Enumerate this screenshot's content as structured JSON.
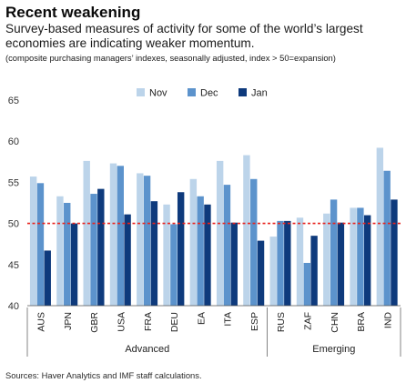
{
  "header": {
    "title": "Recent weakening",
    "subtitle": "Survey-based measures of activity for some of the world’s largest economies are indicating weaker momentum.",
    "note": "(composite purchasing managers’ indexes, seasonally adjusted, index > 50=expansion)"
  },
  "source": "Sources: Haver Analytics and IMF staff calculations.",
  "chart_data": {
    "type": "bar",
    "categories": [
      "AUS",
      "JPN",
      "GBR",
      "USA",
      "FRA",
      "DEU",
      "EA",
      "ITA",
      "ESP",
      "RUS",
      "ZAF",
      "CHN",
      "BRA",
      "IND"
    ],
    "groups": [
      {
        "label": "Advanced",
        "categories": [
          "AUS",
          "JPN",
          "GBR",
          "USA",
          "FRA",
          "DEU",
          "EA",
          "ITA",
          "ESP"
        ]
      },
      {
        "label": "Emerging",
        "categories": [
          "RUS",
          "ZAF",
          "CHN",
          "BRA",
          "IND"
        ]
      }
    ],
    "series": [
      {
        "name": "Nov",
        "color": "#bcd4ea",
        "values": [
          55.7,
          53.3,
          57.6,
          57.3,
          56.1,
          52.3,
          55.4,
          57.6,
          58.3,
          48.4,
          50.7,
          51.2,
          51.9,
          59.2
        ]
      },
      {
        "name": "Dec",
        "color": "#5c93cc",
        "values": [
          54.9,
          52.5,
          53.6,
          57.0,
          55.8,
          49.9,
          53.3,
          54.7,
          55.4,
          50.3,
          45.2,
          52.9,
          51.9,
          56.4
        ]
      },
      {
        "name": "Jan",
        "color": "#0e3a7c",
        "values": [
          46.7,
          50.0,
          54.2,
          51.1,
          52.7,
          53.8,
          52.3,
          50.1,
          47.9,
          50.3,
          48.5,
          50.1,
          51.0,
          52.9
        ]
      }
    ],
    "ylim": [
      40,
      65
    ],
    "yticks": [
      40,
      45,
      50,
      55,
      60,
      65
    ],
    "reference_line": 50,
    "reference_color": "#e8231f",
    "legend_position": "top-center",
    "grid": false
  }
}
